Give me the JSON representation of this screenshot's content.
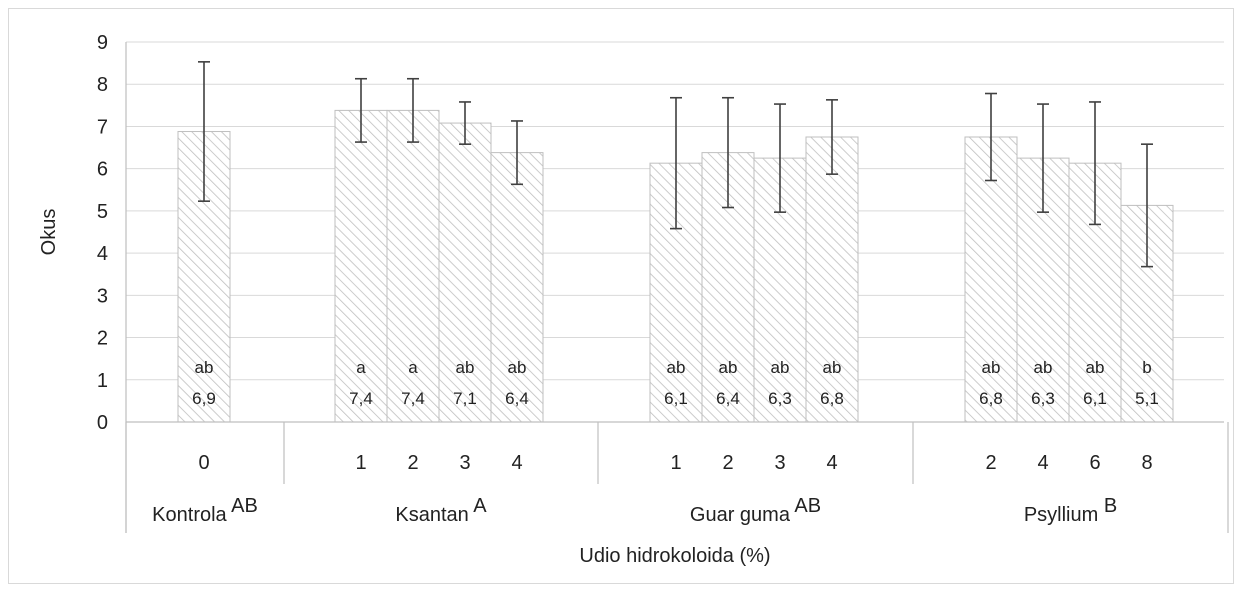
{
  "chart_data": {
    "type": "bar",
    "xlabel": "Udio hidrokoloida (%)",
    "ylabel": "Okus",
    "ylim": [
      0,
      9
    ],
    "yticks": [
      0,
      1,
      2,
      3,
      4,
      5,
      6,
      7,
      8,
      9
    ],
    "grid": true,
    "groups": [
      {
        "name": "Kontrola",
        "letter": "AB",
        "bars": [
          {
            "category": "0",
            "value": 6.88,
            "err": 1.65,
            "label_letter": "ab",
            "label_value": "6,9"
          }
        ]
      },
      {
        "name": "Ksantan",
        "letter": "A",
        "bars": [
          {
            "category": "1",
            "value": 7.38,
            "err": 0.75,
            "label_letter": "a",
            "label_value": "7,4"
          },
          {
            "category": "2",
            "value": 7.38,
            "err": 0.75,
            "label_letter": "a",
            "label_value": "7,4"
          },
          {
            "category": "3",
            "value": 7.08,
            "err": 0.5,
            "label_letter": "ab",
            "label_value": "7,1"
          },
          {
            "category": "4",
            "value": 6.38,
            "err": 0.75,
            "label_letter": "ab",
            "label_value": "6,4"
          }
        ]
      },
      {
        "name": "Guar guma",
        "letter": "AB",
        "bars": [
          {
            "category": "1",
            "value": 6.13,
            "err": 1.55,
            "label_letter": "ab",
            "label_value": "6,1"
          },
          {
            "category": "2",
            "value": 6.38,
            "err": 1.3,
            "label_letter": "ab",
            "label_value": "6,4"
          },
          {
            "category": "3",
            "value": 6.25,
            "err": 1.28,
            "label_letter": "ab",
            "label_value": "6,3"
          },
          {
            "category": "4",
            "value": 6.75,
            "err": 0.88,
            "label_letter": "ab",
            "label_value": "6,8"
          }
        ]
      },
      {
        "name": "Psyllium",
        "letter": "B",
        "bars": [
          {
            "category": "2",
            "value": 6.75,
            "err": 1.03,
            "label_letter": "ab",
            "label_value": "6,8"
          },
          {
            "category": "4",
            "value": 6.25,
            "err": 1.28,
            "label_letter": "ab",
            "label_value": "6,3"
          },
          {
            "category": "6",
            "value": 6.13,
            "err": 1.45,
            "label_letter": "ab",
            "label_value": "6,1"
          },
          {
            "category": "8",
            "value": 5.13,
            "err": 1.45,
            "label_letter": "b",
            "label_value": "5,1"
          }
        ]
      }
    ],
    "colors": {
      "bar_fill": "#ffffff",
      "bar_hatch": "#bfbfbf",
      "bar_border": "#bfbfbf",
      "grid": "#d9d9d9",
      "axis": "#bfbfbf",
      "error_bar": "#404040",
      "text": "#222222"
    }
  }
}
